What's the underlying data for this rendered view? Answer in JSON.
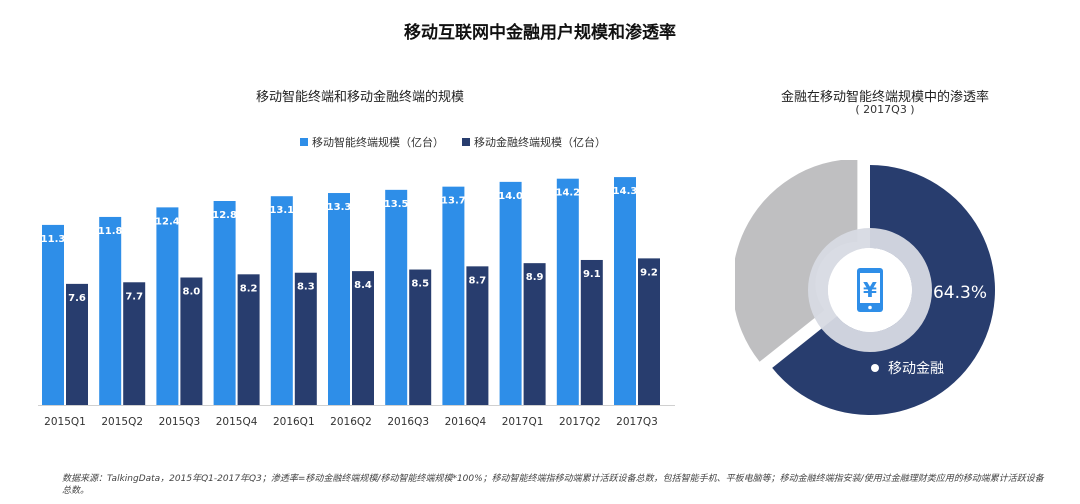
{
  "title": "移动互联网中金融用户规模和渗透率",
  "bar_panel": {
    "title": "移动智能终端和移动金融终端的规模"
  },
  "pie_panel": {
    "title": "金融在移动智能终端规模中的渗透率",
    "subtitle": "( 2017Q3 )",
    "percent_label": "64.3%",
    "slice_label": "移动金融",
    "icon": "mobile-yuan-icon"
  },
  "footnote": "数据来源：TalkingData，2015年Q1-2017年Q3；渗透率=移动金融终端规模/移动智能终端规模*100%；移动智能终端指移动端累计活跃设备总数，包括智能手机、平板电脑等；移动金融终端指安装/使用过金融理财类应用的移动端累计活跃设备总数。",
  "colors": {
    "series1": "#2e8ee8",
    "series2": "#283d6e",
    "pie_main": "#283d6e",
    "pie_rest": "#bfbfc1",
    "pie_inner_ring": "#d7dae3"
  },
  "chart_data": [
    {
      "type": "bar",
      "title": "移动智能终端和移动金融终端的规模",
      "categories": [
        "2015Q1",
        "2015Q2",
        "2015Q3",
        "2015Q4",
        "2016Q1",
        "2016Q2",
        "2016Q3",
        "2016Q4",
        "2017Q1",
        "2017Q2",
        "2017Q3"
      ],
      "series": [
        {
          "name": "移动智能终端规模（亿台）",
          "values": [
            11.3,
            11.8,
            12.4,
            12.8,
            13.1,
            13.3,
            13.5,
            13.7,
            14.0,
            14.2,
            14.3
          ]
        },
        {
          "name": "移动金融终端规模（亿台）",
          "values": [
            7.6,
            7.7,
            8.0,
            8.2,
            8.3,
            8.4,
            8.5,
            8.7,
            8.9,
            9.1,
            9.2
          ]
        }
      ],
      "ylim": [
        0,
        16
      ],
      "legend": "top"
    },
    {
      "type": "pie",
      "title": "金融在移动智能终端规模中的渗透率",
      "subtitle": "( 2017Q3 )",
      "labels": [
        "移动金融",
        ""
      ],
      "values": [
        64.3,
        35.7
      ]
    }
  ]
}
